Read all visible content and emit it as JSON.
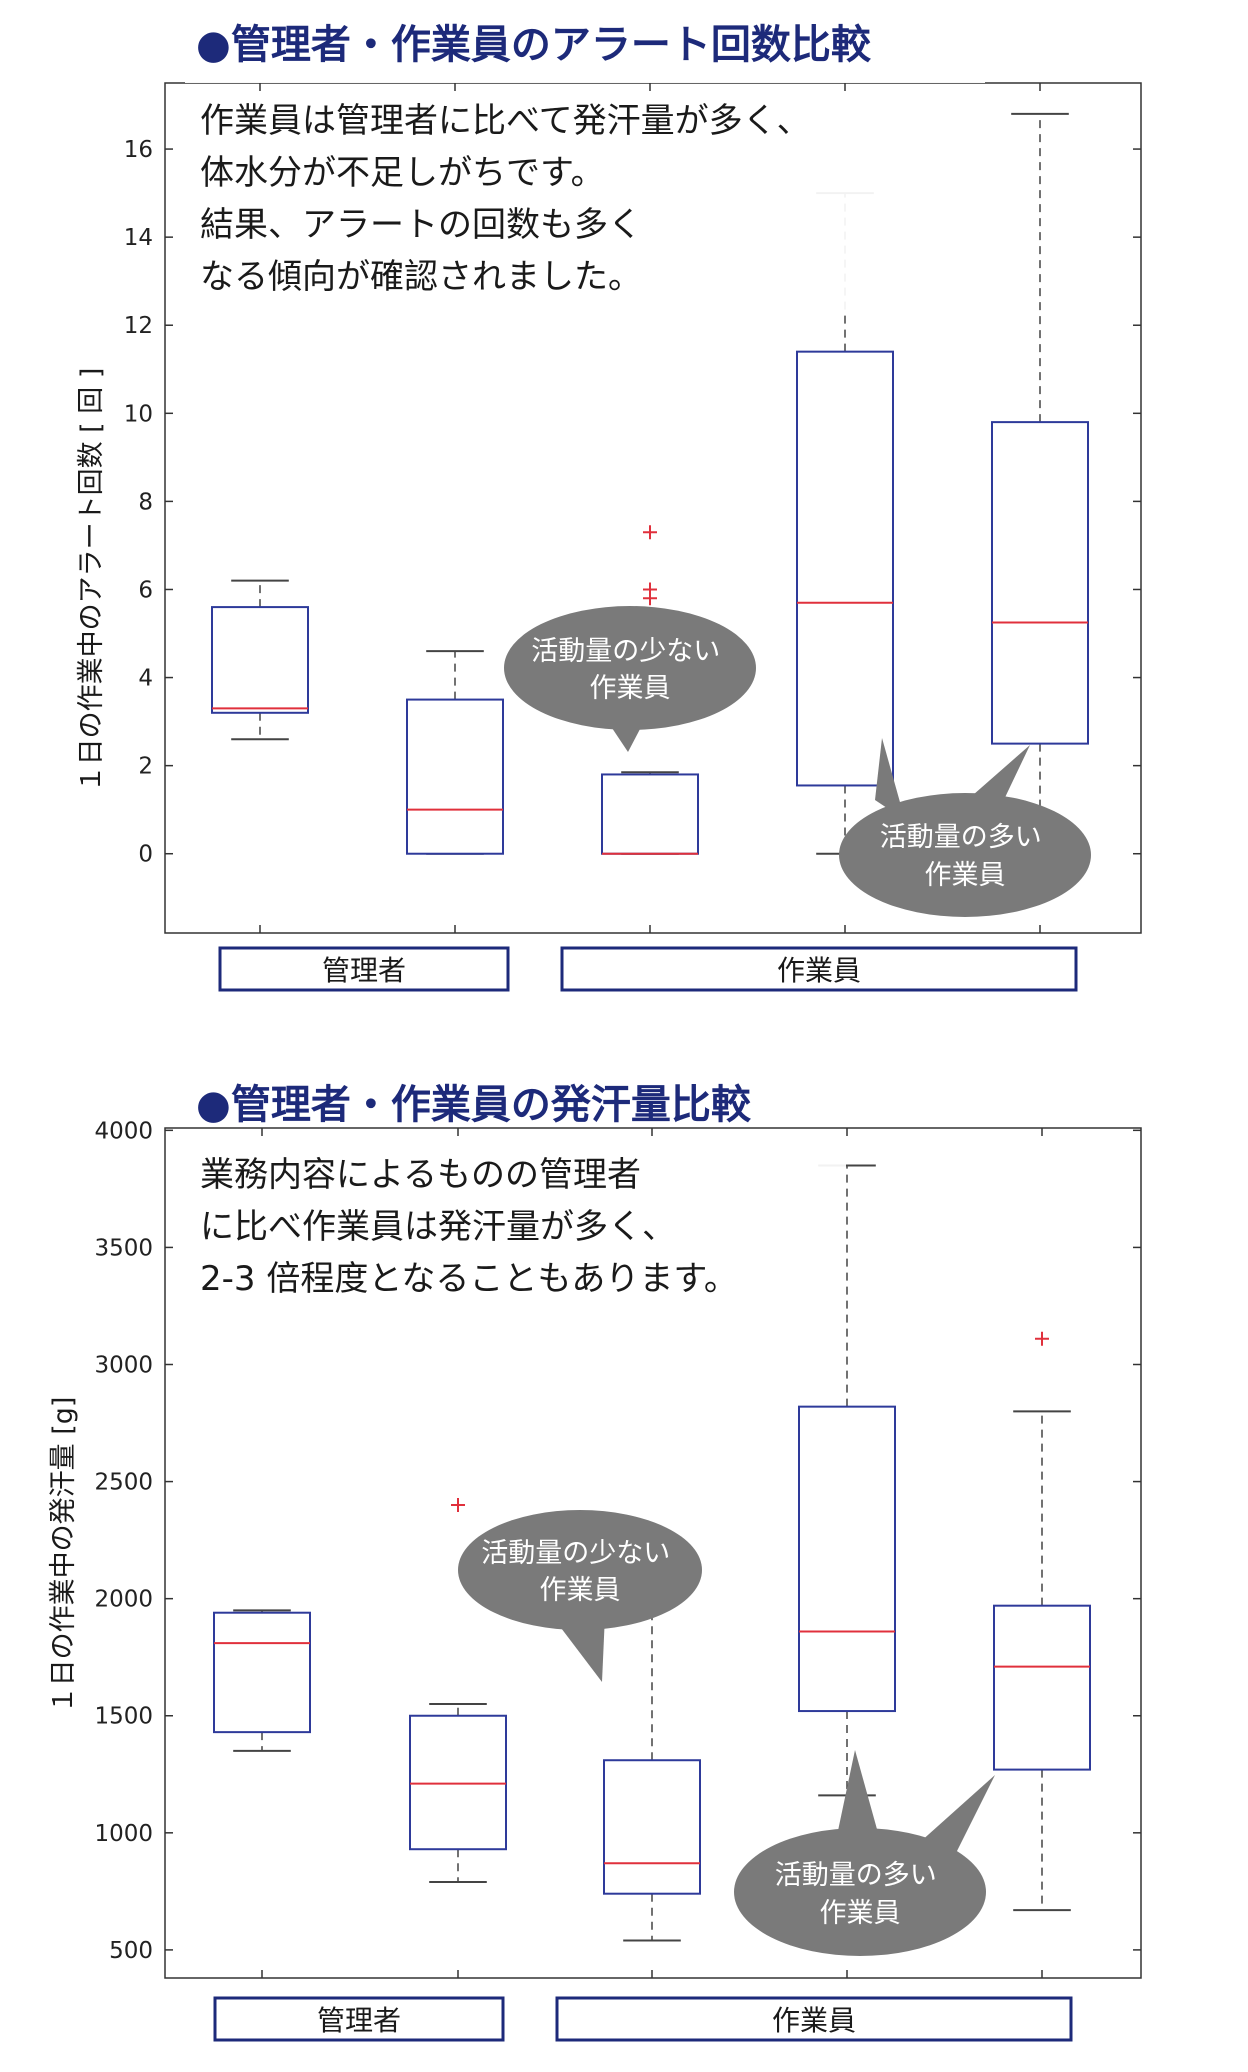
{
  "chart_data": [
    {
      "type": "box",
      "title": "●管理者・作業員のアラート回数比較",
      "ylabel": "１日の作業中のアラート回数 [ 回 ]",
      "ylim": [
        -1.8,
        17.5
      ],
      "yticks": [
        0,
        2,
        4,
        6,
        8,
        10,
        12,
        14,
        16
      ],
      "annotation_lines": [
        "作業員は管理者に比べて発汗量が多く、",
        "体水分が不足しがちです。",
        "結果、アラートの回数も多く",
        "なる傾向が確認されました。"
      ],
      "groups": [
        {
          "label": "管理者",
          "boxes": [
            0
          ]
        },
        {
          "label": "作業員",
          "boxes": [
            3,
            4
          ]
        }
      ],
      "boxes": [
        {
          "min": 2.6,
          "q1": 3.2,
          "median": 3.3,
          "q3": 5.6,
          "max": 6.2,
          "outliers": []
        },
        {
          "min": 0,
          "q1": 0,
          "median": 1.0,
          "q3": 3.5,
          "max": 4.6,
          "outliers": []
        },
        {
          "min": 0,
          "q1": 0,
          "median": 0,
          "q3": 1.8,
          "max": 1.85,
          "outliers": [
            5.8,
            6.0,
            7.3
          ]
        },
        {
          "min": 0,
          "q1": 1.55,
          "median": 5.7,
          "q3": 11.4,
          "max": 15.0,
          "outliers": []
        },
        {
          "min": 0,
          "q1": 2.5,
          "median": 5.25,
          "q3": 9.8,
          "max": 16.8,
          "outliers": []
        }
      ],
      "callouts": [
        {
          "lines": [
            "活動量の少ない",
            "作業員"
          ],
          "targets": [
            2
          ]
        },
        {
          "lines": [
            "活動量の多い",
            "作業員"
          ],
          "targets": [
            3,
            4
          ]
        }
      ]
    },
    {
      "type": "box",
      "title": "●管理者・作業員の発汗量比較",
      "ylabel": "１日の作業中の発汗量 [g]",
      "ylim": [
        380,
        4010
      ],
      "yticks": [
        500,
        1000,
        1500,
        2000,
        2500,
        3000,
        3500,
        4000
      ],
      "annotation_lines": [
        "業務内容によるものの管理者",
        "に比べ作業員は発汗量が多く、",
        "2-3 倍程度となることもあります。"
      ],
      "groups": [
        {
          "label": "管理者",
          "boxes": [
            0
          ]
        },
        {
          "label": "作業員",
          "boxes": [
            3,
            4
          ]
        }
      ],
      "boxes": [
        {
          "min": 1350,
          "q1": 1430,
          "median": 1810,
          "q3": 1940,
          "max": 1950,
          "outliers": []
        },
        {
          "min": 790,
          "q1": 930,
          "median": 1210,
          "q3": 1500,
          "max": 1550,
          "outliers": [
            2400
          ]
        },
        {
          "min": 540,
          "q1": 740,
          "median": 870,
          "q3": 1310,
          "max": 2000,
          "outliers": []
        },
        {
          "min": 1160,
          "q1": 1520,
          "median": 1860,
          "q3": 2820,
          "max": 3850,
          "outliers": []
        },
        {
          "min": 670,
          "q1": 1270,
          "median": 1710,
          "q3": 1970,
          "max": 2800,
          "outliers": [
            3110
          ]
        }
      ],
      "callouts": [
        {
          "lines": [
            "活動量の少ない",
            "作業員"
          ],
          "targets": [
            2
          ]
        },
        {
          "lines": [
            "活動量の多い",
            "作業員"
          ],
          "targets": [
            3,
            4
          ]
        }
      ]
    }
  ],
  "colors": {
    "title": "#1d2a7a",
    "box_border": "#2e3a9a",
    "median": "#e0303c",
    "outlier": "#e0303c",
    "whisker": "#444444",
    "axis": "#333333",
    "bubble": "#7a7a7a",
    "group_box": "#1d2a7a"
  }
}
